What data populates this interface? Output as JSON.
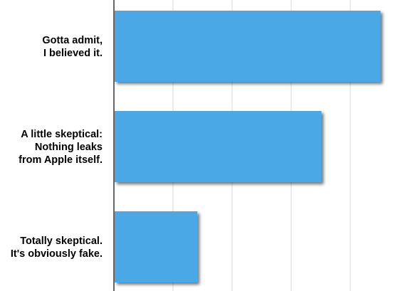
{
  "chart_data": {
    "type": "bar",
    "orientation": "horizontal",
    "categories": [
      "Gotta admit,\nI believed it.",
      "A little skeptical:\nNothing leaks\nfrom Apple itself.",
      "Totally skeptical.\nIt's obviously fake."
    ],
    "values": [
      45,
      35,
      14
    ],
    "xlim": [
      0,
      47
    ],
    "grid": true,
    "bar_color": "#4ba8e6",
    "gridline_color": "#d9d9d9"
  }
}
